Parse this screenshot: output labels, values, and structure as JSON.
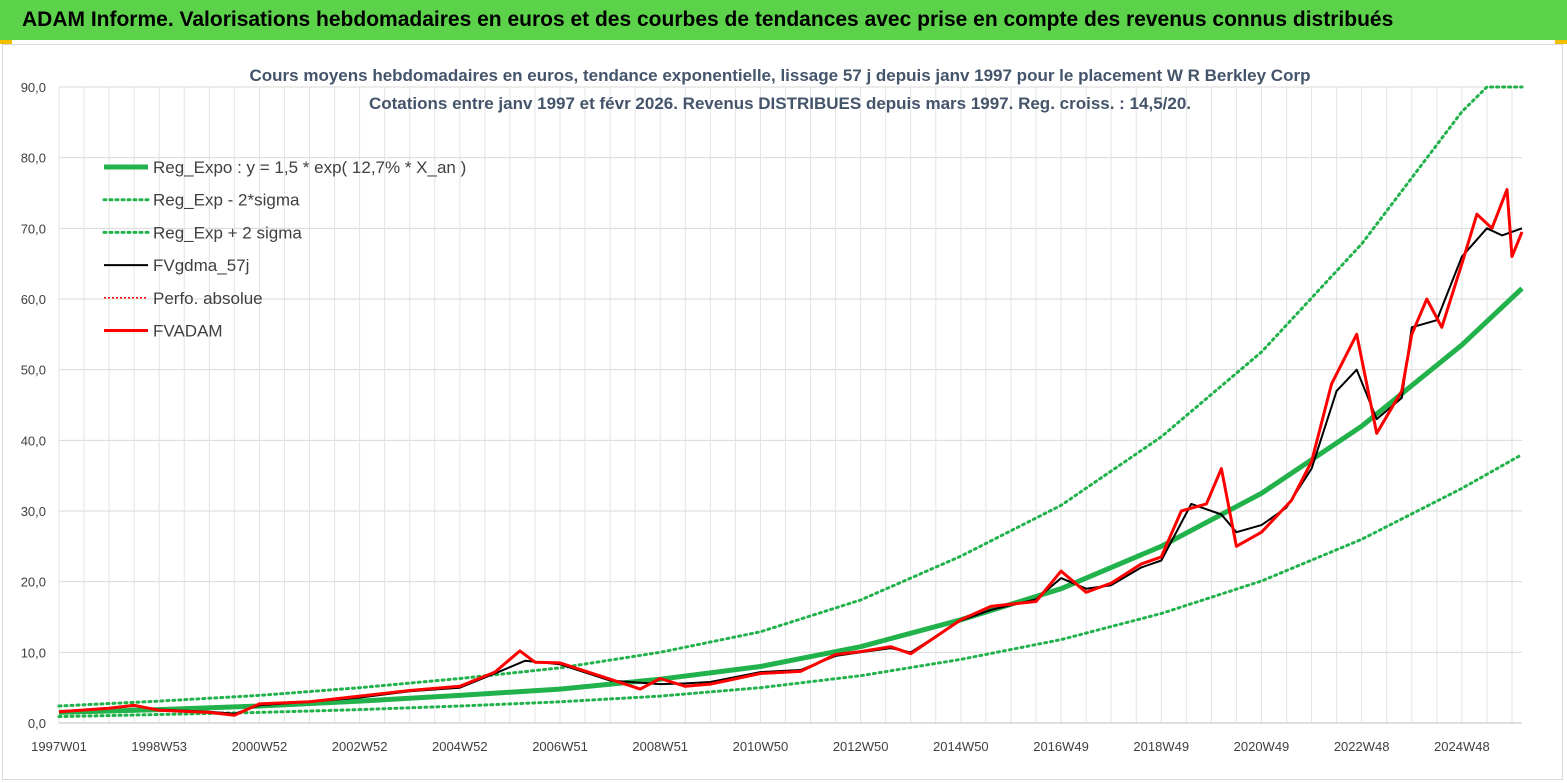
{
  "banner": {
    "title": "ADAM Informe. Valorisations hebdomadaires en euros et des courbes de tendances avec prise en compte des revenus connus distribués",
    "background": "#5cd24a"
  },
  "chart_data": {
    "type": "line",
    "title": "Cours moyens hebdomadaires en euros, tendance exponentielle, lissage 57 j depuis janv 1997 pour le placement W R Berkley Corp",
    "subtitle": "Cotations entre janv 1997 et févr 2026. Revenus DISTRIBUES depuis mars 1997. Reg. croiss. : 14,5/20.",
    "xlabel": "",
    "ylabel": "",
    "xlim": [
      1997.0,
      2026.2
    ],
    "ylim": [
      0,
      90
    ],
    "y_ticks": [
      "0,0",
      "10,0",
      "20,0",
      "30,0",
      "40,0",
      "50,0",
      "60,0",
      "70,0",
      "80,0",
      "90,0"
    ],
    "x_ticks": [
      {
        "label": "1997W01",
        "year": 1997.0
      },
      {
        "label": "1998W53",
        "year": 1999.0
      },
      {
        "label": "2000W52",
        "year": 2001.0
      },
      {
        "label": "2002W52",
        "year": 2003.0
      },
      {
        "label": "2004W52",
        "year": 2005.0
      },
      {
        "label": "2006W51",
        "year": 2007.0
      },
      {
        "label": "2008W51",
        "year": 2009.0
      },
      {
        "label": "2010W50",
        "year": 2011.0
      },
      {
        "label": "2012W50",
        "year": 2013.0
      },
      {
        "label": "2014W50",
        "year": 2015.0
      },
      {
        "label": "2016W49",
        "year": 2017.0
      },
      {
        "label": "2018W49",
        "year": 2019.0
      },
      {
        "label": "2020W49",
        "year": 2021.0
      },
      {
        "label": "2022W48",
        "year": 2023.0
      },
      {
        "label": "2024W48",
        "year": 2025.0
      }
    ],
    "grid": true,
    "legend_position": "top-left",
    "series": [
      {
        "name": "Reg_Expo : y = 1,5 * exp( 12,7% *  X_an )",
        "style": "solid-thick",
        "color": "#21b24b",
        "x": [
          1997.0,
          1999.0,
          2001.0,
          2003.0,
          2005.0,
          2007.0,
          2009.0,
          2011.0,
          2013.0,
          2015.0,
          2017.0,
          2019.0,
          2021.0,
          2023.0,
          2025.0,
          2026.2
        ],
        "values": [
          1.5,
          1.9,
          2.4,
          3.1,
          3.9,
          4.8,
          6.2,
          8.0,
          10.8,
          14.6,
          19.0,
          25.0,
          32.5,
          42.0,
          53.5,
          61.5
        ]
      },
      {
        "name": "Reg_Exp - 2*sigma",
        "style": "dotted",
        "color": "#21b24b",
        "x": [
          1997.0,
          1999.0,
          2001.0,
          2003.0,
          2005.0,
          2007.0,
          2009.0,
          2011.0,
          2013.0,
          2015.0,
          2017.0,
          2019.0,
          2021.0,
          2023.0,
          2025.0,
          2026.2
        ],
        "values": [
          0.9,
          1.2,
          1.5,
          1.9,
          2.4,
          3.0,
          3.8,
          5.0,
          6.7,
          9.0,
          11.8,
          15.5,
          20.1,
          26.0,
          33.2,
          38.0
        ]
      },
      {
        "name": "Reg_Exp + 2 sigma",
        "style": "dotted",
        "color": "#21b24b",
        "x": [
          1997.0,
          1999.0,
          2001.0,
          2003.0,
          2005.0,
          2007.0,
          2009.0,
          2011.0,
          2013.0,
          2015.0,
          2017.0,
          2019.0,
          2021.0,
          2023.0,
          2025.0,
          2025.5,
          2026.2
        ],
        "values": [
          2.4,
          3.1,
          3.9,
          5.0,
          6.3,
          7.8,
          10.0,
          12.9,
          17.4,
          23.6,
          30.8,
          40.5,
          52.5,
          67.8,
          86.5,
          90.0,
          90.0
        ]
      },
      {
        "name": "FVgdma_57j",
        "style": "solid-thin",
        "color": "#000000",
        "x": [
          1997.0,
          1998.0,
          1998.5,
          1999.0,
          2000.0,
          2000.5,
          2001.0,
          2002.0,
          2003.0,
          2004.0,
          2005.0,
          2005.7,
          2006.3,
          2007.0,
          2008.0,
          2009.0,
          2009.5,
          2010.0,
          2011.0,
          2011.8,
          2012.5,
          2013.0,
          2013.6,
          2014.0,
          2015.0,
          2015.6,
          2016.5,
          2017.0,
          2017.5,
          2018.0,
          2018.6,
          2019.0,
          2019.6,
          2020.2,
          2020.5,
          2021.0,
          2021.5,
          2022.0,
          2022.5,
          2022.9,
          2023.3,
          2023.8,
          2024.0,
          2024.5,
          2025.0,
          2025.5,
          2025.8,
          2026.2
        ],
        "values": [
          1.6,
          2.1,
          2.4,
          1.9,
          1.6,
          1.3,
          2.5,
          3.0,
          3.6,
          4.5,
          5.0,
          7.0,
          8.8,
          8.3,
          6.0,
          5.5,
          5.6,
          5.8,
          7.2,
          7.5,
          9.5,
          10.0,
          10.6,
          10.0,
          14.5,
          16.0,
          17.5,
          20.5,
          19.0,
          19.5,
          22.0,
          23.0,
          31.0,
          29.5,
          27.0,
          28.0,
          30.5,
          36.0,
          47.0,
          50.0,
          43.0,
          46.0,
          56.0,
          57.0,
          66.0,
          70.0,
          69.0,
          70.0
        ]
      },
      {
        "name": "Perfo. absolue",
        "style": "dotted-thin",
        "color": "#ff0000",
        "x": [],
        "values": []
      },
      {
        "name": "FVADAM",
        "style": "solid-thick",
        "color": "#ff0000",
        "x": [
          1997.0,
          1998.0,
          1998.5,
          1999.0,
          2000.0,
          2000.5,
          2001.0,
          2002.0,
          2003.0,
          2004.0,
          2005.0,
          2005.7,
          2006.2,
          2006.5,
          2007.0,
          2008.0,
          2008.6,
          2009.0,
          2009.5,
          2010.0,
          2011.0,
          2011.8,
          2012.5,
          2013.0,
          2013.6,
          2014.0,
          2015.0,
          2015.6,
          2016.5,
          2017.0,
          2017.5,
          2018.0,
          2018.6,
          2019.0,
          2019.4,
          2019.9,
          2020.2,
          2020.5,
          2021.0,
          2021.6,
          2022.0,
          2022.4,
          2022.9,
          2023.3,
          2023.8,
          2024.0,
          2024.3,
          2024.6,
          2025.0,
          2025.3,
          2025.6,
          2025.9,
          2026.0,
          2026.2
        ],
        "values": [
          1.6,
          2.1,
          2.5,
          1.8,
          1.5,
          1.1,
          2.7,
          3.0,
          3.8,
          4.6,
          5.2,
          7.2,
          10.2,
          8.6,
          8.5,
          6.2,
          4.8,
          6.3,
          5.2,
          5.5,
          7.0,
          7.3,
          9.7,
          10.1,
          10.8,
          9.8,
          14.6,
          16.5,
          17.2,
          21.5,
          18.5,
          19.8,
          22.5,
          23.5,
          30.0,
          31.0,
          36.0,
          25.0,
          27.0,
          31.5,
          37.0,
          48.0,
          55.0,
          41.0,
          47.0,
          55.0,
          60.0,
          56.0,
          65.0,
          72.0,
          70.0,
          75.5,
          66.0,
          69.5
        ]
      }
    ]
  }
}
